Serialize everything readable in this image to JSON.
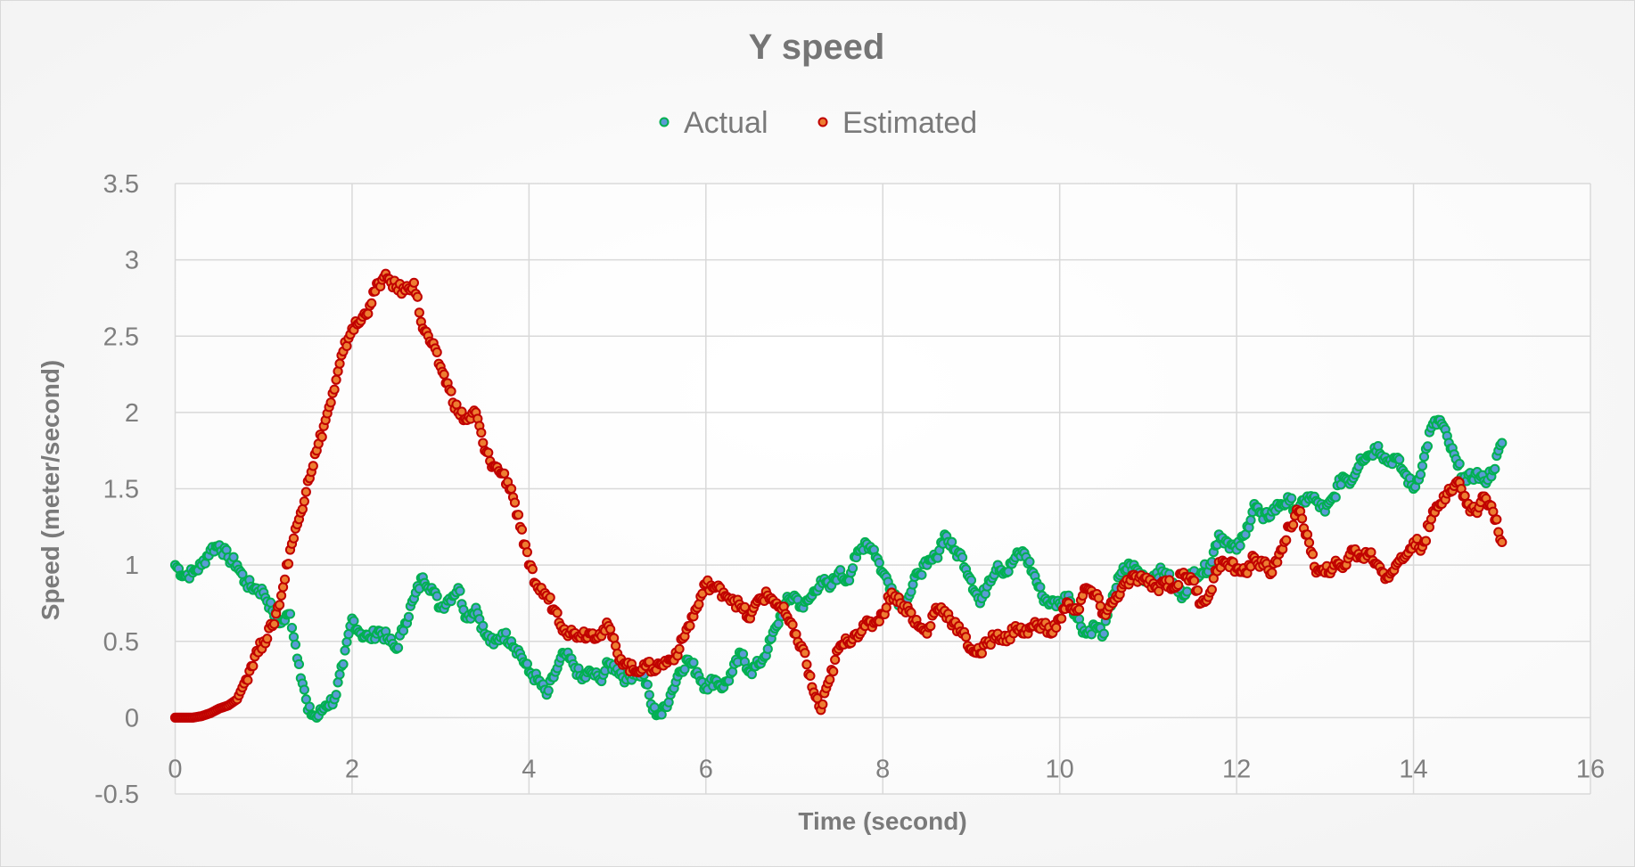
{
  "chart_data": {
    "type": "scatter",
    "title": "Y speed",
    "xlabel": "Time (second)",
    "ylabel": "Speed (meter/second)",
    "xlim": [
      0,
      16
    ],
    "ylim": [
      -0.5,
      3.5
    ],
    "xticks": [
      0,
      2,
      4,
      6,
      8,
      10,
      12,
      14,
      16
    ],
    "yticks": [
      -0.5,
      0,
      0.5,
      1,
      1.5,
      2,
      2.5,
      3,
      3.5
    ],
    "xtick_labels": [
      "0",
      "2",
      "4",
      "6",
      "8",
      "10",
      "12",
      "14",
      "16"
    ],
    "ytick_labels": [
      "-0.5",
      "0",
      "0.5",
      "1",
      "1.5",
      "2",
      "2.5",
      "3",
      "3.5"
    ],
    "grid": true,
    "legend_position": "top",
    "x_start": 0,
    "x_step": 0.1,
    "series": [
      {
        "name": "Actual",
        "fill": "#5b9bd5",
        "stroke": "#00b050",
        "values": [
          1.0,
          0.93,
          0.95,
          1.0,
          1.1,
          1.13,
          1.05,
          1.0,
          0.88,
          0.85,
          0.82,
          0.7,
          0.62,
          0.68,
          0.35,
          0.05,
          0.0,
          0.08,
          0.12,
          0.35,
          0.65,
          0.55,
          0.52,
          0.57,
          0.52,
          0.45,
          0.62,
          0.78,
          0.92,
          0.85,
          0.72,
          0.78,
          0.85,
          0.65,
          0.72,
          0.55,
          0.48,
          0.55,
          0.5,
          0.42,
          0.3,
          0.25,
          0.15,
          0.3,
          0.42,
          0.35,
          0.25,
          0.3,
          0.25,
          0.35,
          0.32,
          0.25,
          0.3,
          0.28,
          0.05,
          0.02,
          0.15,
          0.3,
          0.38,
          0.3,
          0.2,
          0.25,
          0.2,
          0.3,
          0.42,
          0.3,
          0.35,
          0.45,
          0.6,
          0.75,
          0.8,
          0.72,
          0.8,
          0.9,
          0.85,
          0.95,
          0.9,
          1.05,
          1.15,
          1.1,
          0.95,
          0.85,
          0.75,
          0.8,
          0.95,
          1.0,
          1.05,
          1.2,
          1.1,
          1.05,
          0.9,
          0.75,
          0.9,
          1.0,
          0.95,
          1.05,
          1.08,
          0.95,
          0.8,
          0.75,
          0.75,
          0.8,
          0.65,
          0.55,
          0.6,
          0.55,
          0.8,
          0.95,
          1.0,
          0.95,
          0.9,
          0.95,
          0.95,
          0.85,
          0.8,
          0.95,
          0.95,
          1.0,
          1.2,
          1.15,
          1.1,
          1.2,
          1.4,
          1.3,
          1.35,
          1.4,
          1.42,
          1.35,
          1.45,
          1.42,
          1.35,
          1.45,
          1.58,
          1.55,
          1.7,
          1.72,
          1.78,
          1.68,
          1.7,
          1.6,
          1.5,
          1.65,
          1.9,
          1.95,
          1.8,
          1.65,
          1.55,
          1.6,
          1.55,
          1.62,
          1.8
        ]
      },
      {
        "name": "Estimated",
        "fill": "#ed7d31",
        "stroke": "#c00000",
        "values": [
          0,
          0,
          0,
          0.01,
          0.03,
          0.06,
          0.08,
          0.12,
          0.25,
          0.4,
          0.5,
          0.6,
          0.8,
          1.1,
          1.3,
          1.55,
          1.75,
          1.95,
          2.15,
          2.4,
          2.55,
          2.6,
          2.7,
          2.85,
          2.88,
          2.82,
          2.8,
          2.85,
          2.55,
          2.45,
          2.3,
          2.15,
          2.0,
          1.95,
          2.0,
          1.75,
          1.65,
          1.6,
          1.5,
          1.25,
          1.0,
          0.85,
          0.8,
          0.7,
          0.58,
          0.55,
          0.55,
          0.55,
          0.55,
          0.6,
          0.42,
          0.35,
          0.3,
          0.35,
          0.32,
          0.35,
          0.38,
          0.45,
          0.6,
          0.72,
          0.88,
          0.85,
          0.82,
          0.78,
          0.72,
          0.65,
          0.78,
          0.8,
          0.75,
          0.68,
          0.55,
          0.45,
          0.2,
          0.05,
          0.25,
          0.45,
          0.5,
          0.55,
          0.6,
          0.62,
          0.68,
          0.82,
          0.75,
          0.7,
          0.6,
          0.55,
          0.72,
          0.7,
          0.62,
          0.55,
          0.45,
          0.42,
          0.5,
          0.55,
          0.5,
          0.6,
          0.55,
          0.6,
          0.62,
          0.55,
          0.65,
          0.75,
          0.7,
          0.85,
          0.8,
          0.68,
          0.75,
          0.85,
          0.9,
          0.92,
          0.88,
          0.85,
          0.9,
          0.85,
          0.95,
          0.9,
          0.75,
          0.82,
          1.02,
          1.0,
          0.98,
          0.95,
          1.05,
          1.0,
          0.95,
          1.1,
          1.25,
          1.35,
          1.2,
          0.95,
          0.95,
          1.0,
          0.98,
          1.1,
          1.05,
          1.08,
          1.0,
          0.92,
          1.0,
          1.05,
          1.15,
          1.12,
          1.3,
          1.4,
          1.5,
          1.55,
          1.4,
          1.35,
          1.45,
          1.35,
          1.15
        ]
      }
    ]
  }
}
